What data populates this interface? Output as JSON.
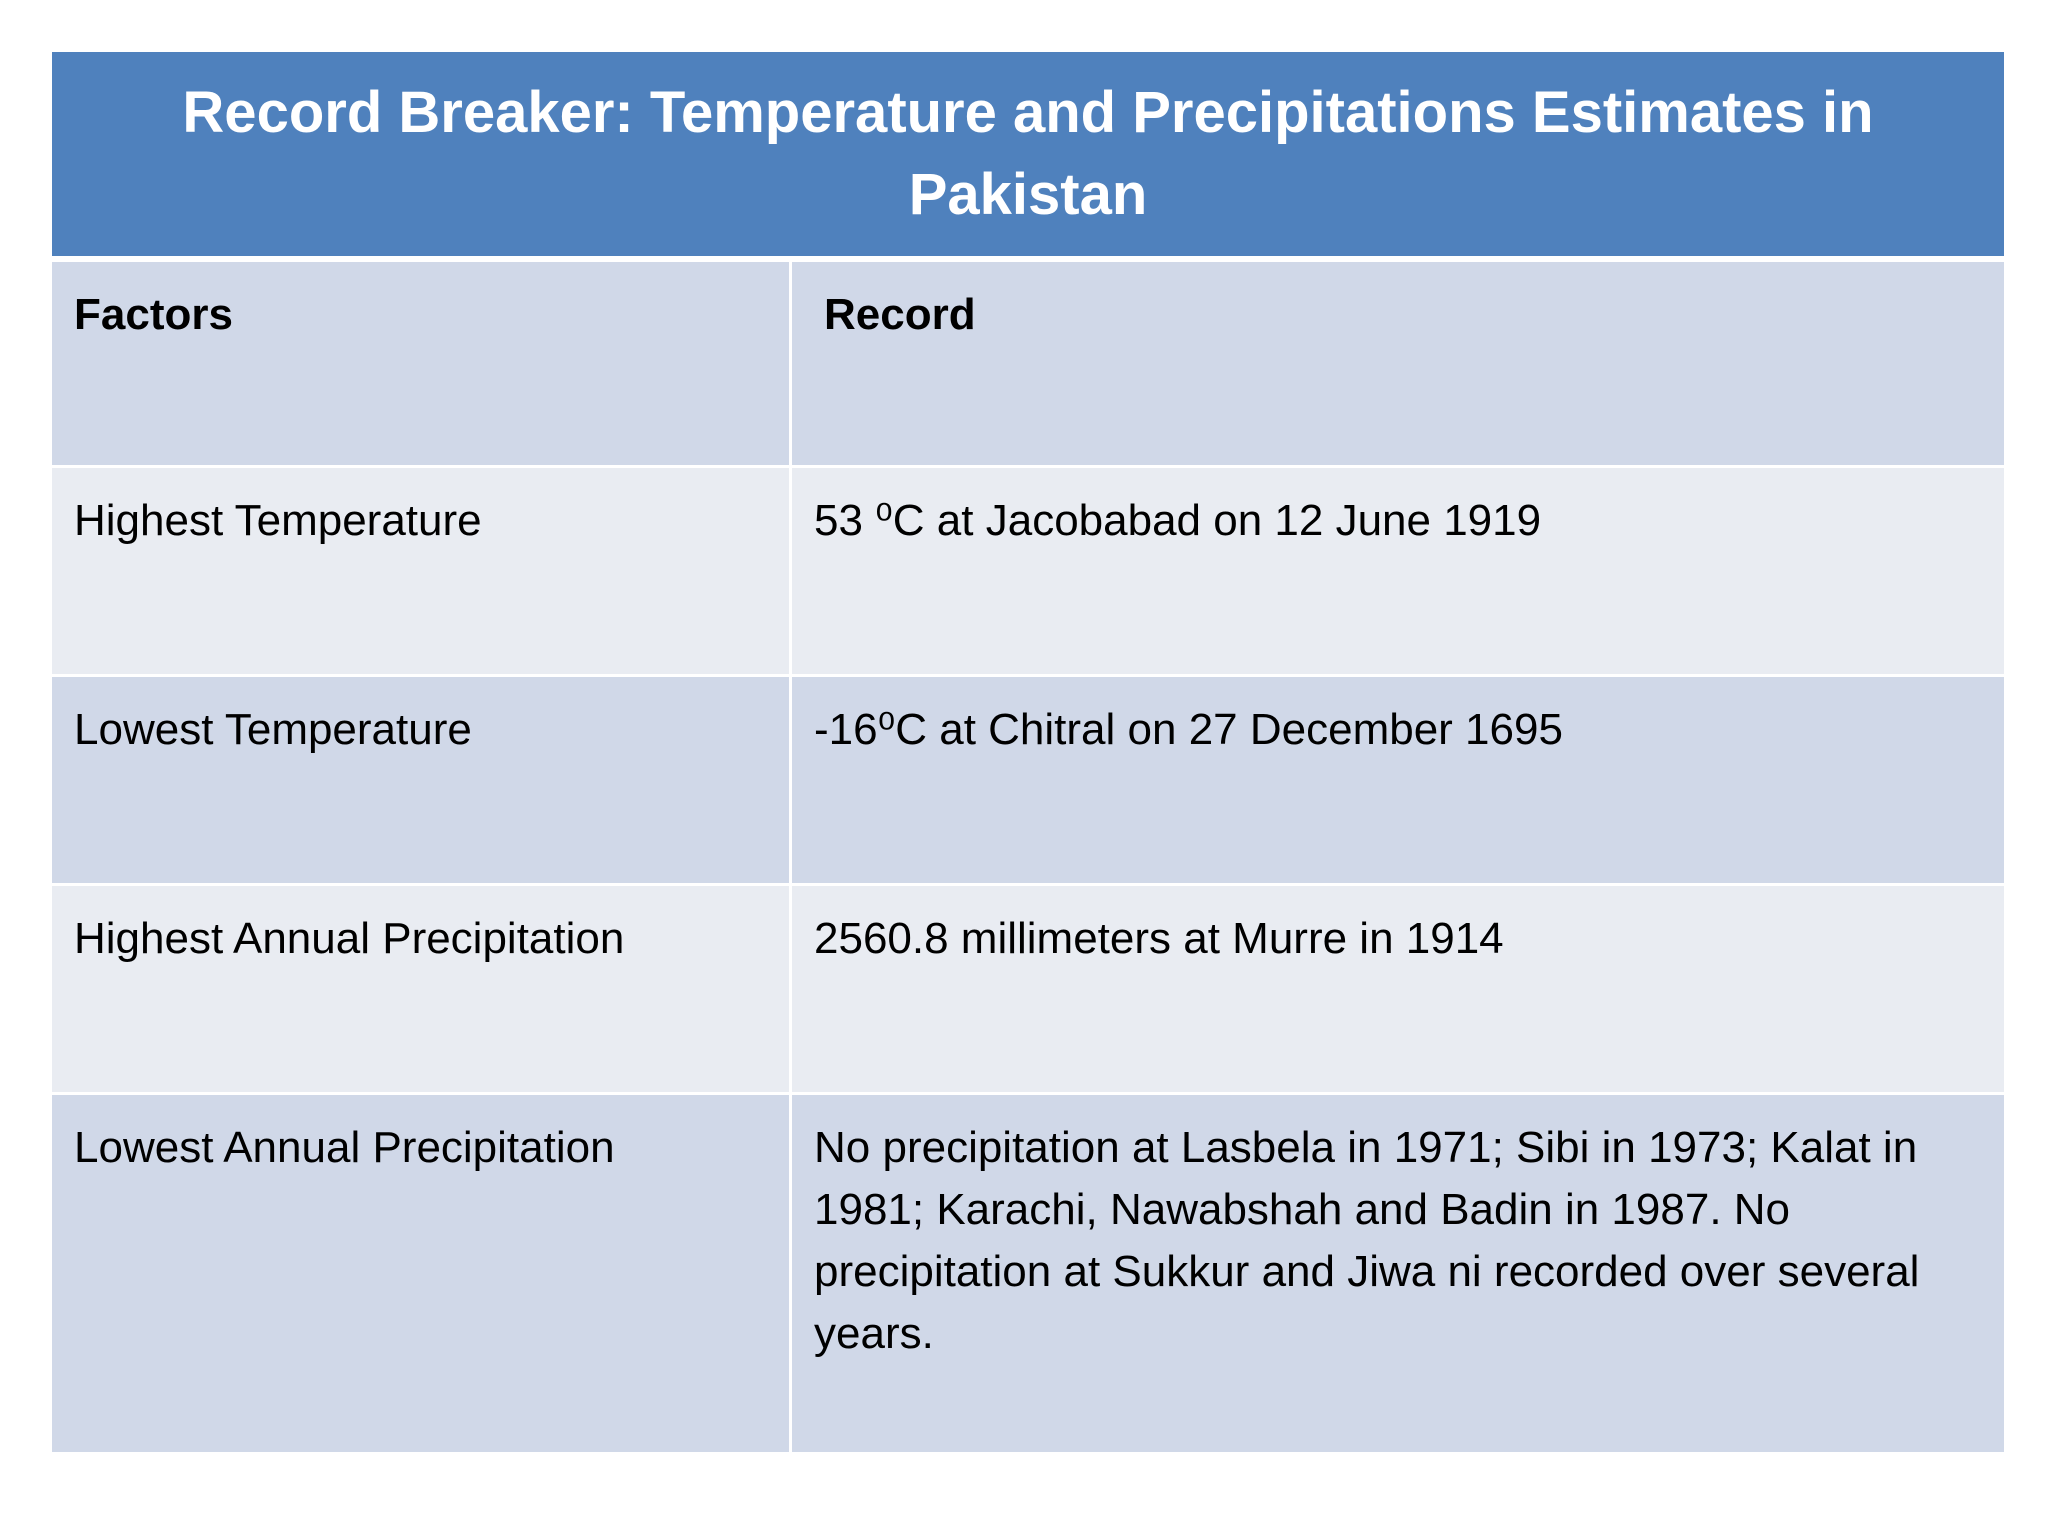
{
  "title": "Record Breaker: Temperature and Precipitations  Estimates in Pakistan",
  "table": {
    "headers": [
      "Factors",
      "Record"
    ],
    "rows": [
      [
        "Highest Temperature",
        "53 ⁰C at Jacobabad on 12 June 1919"
      ],
      [
        "Lowest Temperature",
        "-16⁰C at Chitral on 27 December 1695"
      ],
      [
        "Highest Annual Precipitation",
        "2560.8 millimeters at Murre in 1914"
      ],
      [
        "Lowest Annual Precipitation",
        "No precipitation at Lasbela in 1971; Sibi in 1973; Kalat in 1981; Karachi, Nawabshah and Badin in 1987. No precipitation at Sukkur and Jiwa ni recorded over several years."
      ]
    ]
  },
  "colors": {
    "title_bar": "#4f81bd",
    "row_dark": "#d0d8e8",
    "row_light": "#e9ecf2"
  }
}
